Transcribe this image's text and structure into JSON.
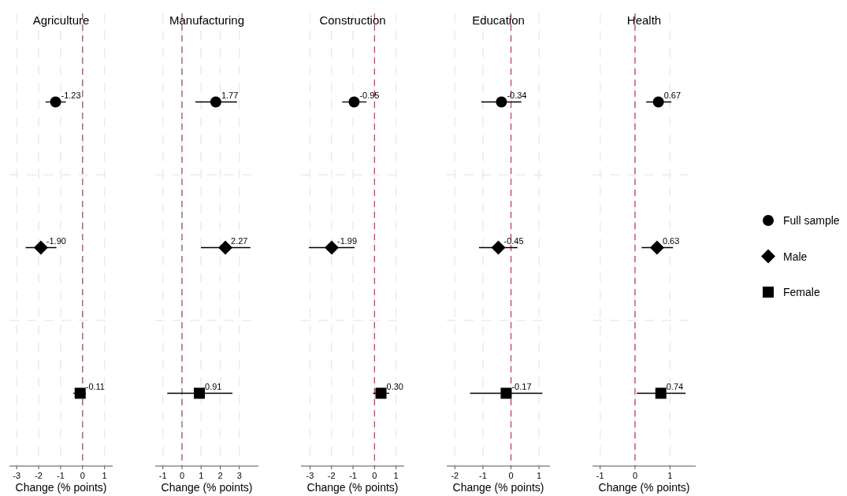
{
  "chart_data": [
    {
      "type": "scatter",
      "title": "Agriculture",
      "xlabel": "Change (% points)",
      "orientation": "horizontal",
      "categories": [
        null,
        null,
        null
      ],
      "xlim": [
        -3.33,
        1.37
      ],
      "xticks": [
        -3,
        -2,
        -1,
        0,
        1
      ],
      "grid": true,
      "tick_labels": "x",
      "ref_lines": [
        {
          "axis": "x",
          "value": 0,
          "color": "#8c4a52",
          "line_style": "dashed"
        }
      ],
      "legend": false,
      "series": [
        {
          "color": "#000000",
          "marker": "circle",
          "values": [
            -1.23,
            null,
            null
          ],
          "errors": [
            [
              -1.69,
              -0.76
            ],
            null,
            null
          ],
          "value_labels": [
            "-1.23",
            null,
            null
          ]
        },
        {
          "color": "#000000",
          "marker": "diamond",
          "values": [
            null,
            -1.9,
            null
          ],
          "errors": [
            null,
            [
              -2.59,
              -1.19
            ],
            null
          ],
          "value_labels": [
            null,
            "-1.90",
            null
          ]
        },
        {
          "color": "#000000",
          "marker": "square",
          "values": [
            null,
            null,
            -0.11
          ],
          "errors": [
            null,
            null,
            [
              -0.43,
              0.15
            ]
          ],
          "value_labels": [
            null,
            null,
            "-0.11"
          ]
        }
      ]
    },
    {
      "type": "scatter",
      "title": "Manufacturing",
      "xlabel": "Change (% points)",
      "orientation": "horizontal",
      "categories": [
        null,
        null,
        null
      ],
      "xlim": [
        -1.4,
        4.0
      ],
      "xticks": [
        -1,
        0,
        1,
        2,
        3
      ],
      "grid": true,
      "tick_labels": "x",
      "ref_lines": [
        {
          "axis": "x",
          "value": 0,
          "color": "#8c4a52",
          "line_style": "dashed"
        }
      ],
      "legend": false,
      "series": [
        {
          "color": "#000000",
          "marker": "circle",
          "values": [
            1.77,
            null,
            null
          ],
          "errors": [
            [
              0.7,
              2.88
            ],
            null,
            null
          ],
          "value_labels": [
            "1.77",
            null,
            null
          ]
        },
        {
          "color": "#000000",
          "marker": "diamond",
          "values": [
            null,
            2.27,
            null
          ],
          "errors": [
            null,
            [
              0.99,
              3.58
            ],
            null
          ],
          "value_labels": [
            null,
            "2.27",
            null
          ]
        },
        {
          "color": "#000000",
          "marker": "square",
          "values": [
            null,
            null,
            0.91
          ],
          "errors": [
            null,
            null,
            [
              -0.77,
              2.64
            ]
          ],
          "value_labels": [
            null,
            null,
            "0.91"
          ]
        }
      ]
    },
    {
      "type": "scatter",
      "title": "Construction",
      "xlabel": "Change (% points)",
      "orientation": "horizontal",
      "categories": [
        null,
        null,
        null
      ],
      "xlim": [
        -3.42,
        1.38
      ],
      "xticks": [
        -3,
        -2,
        -1,
        0,
        1
      ],
      "grid": true,
      "tick_labels": "x",
      "ref_lines": [
        {
          "axis": "x",
          "value": 0,
          "color": "#b04452",
          "line_style": "dashed"
        }
      ],
      "legend": false,
      "series": [
        {
          "color": "#000000",
          "marker": "circle",
          "values": [
            -0.95,
            null,
            null
          ],
          "errors": [
            [
              -1.51,
              -0.37
            ],
            null,
            null
          ],
          "value_labels": [
            "-0.95",
            null,
            null
          ]
        },
        {
          "color": "#000000",
          "marker": "diamond",
          "values": [
            null,
            -1.99,
            null
          ],
          "errors": [
            null,
            [
              -3.05,
              -0.93
            ],
            null
          ],
          "value_labels": [
            null,
            "-1.99",
            null
          ]
        },
        {
          "color": "#000000",
          "marker": "square",
          "values": [
            null,
            null,
            0.3
          ],
          "errors": [
            null,
            null,
            [
              -0.07,
              0.69
            ]
          ],
          "value_labels": [
            null,
            null,
            "0.30"
          ]
        }
      ]
    },
    {
      "type": "scatter",
      "title": "Education",
      "xlabel": "Change (% points)",
      "orientation": "horizontal",
      "categories": [
        null,
        null,
        null
      ],
      "xlim": [
        -2.29,
        1.39
      ],
      "xticks": [
        -2,
        -1,
        0,
        1
      ],
      "grid": true,
      "tick_labels": "x",
      "ref_lines": [
        {
          "axis": "x",
          "value": 0,
          "color": "#b83c4c",
          "line_style": "dashed"
        }
      ],
      "legend": false,
      "series": [
        {
          "color": "#000000",
          "marker": "circle",
          "values": [
            -0.34,
            null,
            null
          ],
          "errors": [
            [
              -1.06,
              0.37
            ],
            null,
            null
          ],
          "value_labels": [
            "-0.34",
            null,
            null
          ]
        },
        {
          "color": "#000000",
          "marker": "diamond",
          "values": [
            null,
            -0.45,
            null
          ],
          "errors": [
            null,
            [
              -1.14,
              0.23
            ],
            null
          ],
          "value_labels": [
            null,
            "-0.45",
            null
          ]
        },
        {
          "color": "#000000",
          "marker": "square",
          "values": [
            null,
            null,
            -0.17
          ],
          "errors": [
            null,
            null,
            [
              -1.46,
              1.12
            ]
          ],
          "value_labels": [
            null,
            null,
            "-0.17"
          ]
        }
      ]
    },
    {
      "type": "scatter",
      "title": "Health",
      "xlabel": "Change (% points)",
      "orientation": "horizontal",
      "categories": [
        null,
        null,
        null
      ],
      "xlim": [
        -1.22,
        1.74
      ],
      "xticks": [
        -1,
        0,
        1
      ],
      "grid": true,
      "tick_labels": "x",
      "ref_lines": [
        {
          "axis": "x",
          "value": 0,
          "color": "#c03040",
          "line_style": "dashed"
        }
      ],
      "legend": "right",
      "series": [
        {
          "name": "Full sample",
          "color": "#000000",
          "marker": "circle",
          "values": [
            0.67,
            null,
            null
          ],
          "errors": [
            [
              0.32,
              1.04
            ],
            null,
            null
          ],
          "value_labels": [
            "0.67",
            null,
            null
          ]
        },
        {
          "name": "Male",
          "color": "#000000",
          "marker": "diamond",
          "values": [
            null,
            0.63,
            null
          ],
          "errors": [
            null,
            [
              0.19,
              1.09
            ],
            null
          ],
          "value_labels": [
            null,
            "0.63",
            null
          ]
        },
        {
          "name": "Female",
          "color": "#000000",
          "marker": "square",
          "values": [
            null,
            null,
            0.74
          ],
          "errors": [
            null,
            null,
            [
              0.05,
              1.45
            ]
          ],
          "value_labels": [
            null,
            null,
            "0.74"
          ]
        }
      ]
    }
  ]
}
